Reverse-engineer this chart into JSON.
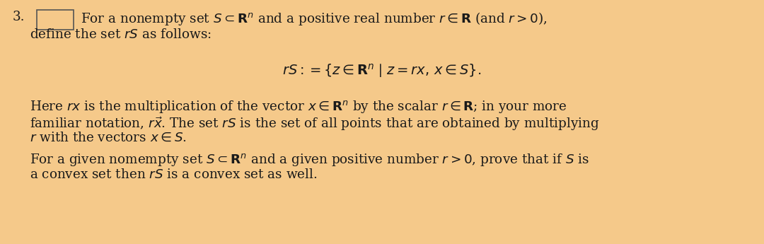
{
  "background_color": "#f5c98a",
  "text_color": "#1a1a1a",
  "fontsize": 13.2,
  "formula_fontsize": 14.0,
  "box_color": "#b0b0b0"
}
